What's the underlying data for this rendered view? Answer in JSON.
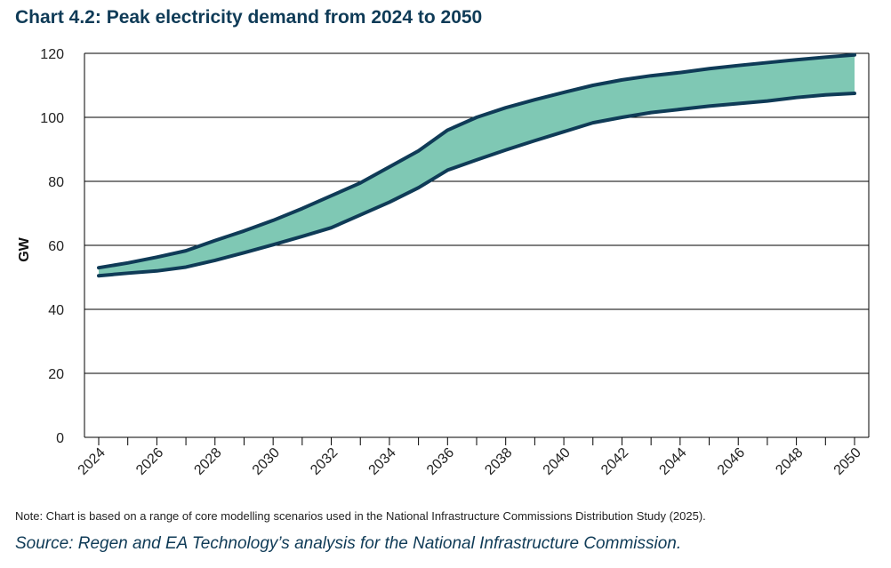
{
  "title": "Chart 4.2: Peak electricity demand from 2024 to 2050",
  "note": "Note: Chart is based on a range of core modelling scenarios used in the National Infrastructure Commissions Distribution Study (2025).",
  "source": "Source: Regen and EA Technology’s analysis for the National Infrastructure Commission.",
  "colors": {
    "band_fill": "#7fc8b4",
    "line": "#0f3b57",
    "grid": "#000000",
    "title": "#0f3b57"
  },
  "chart_data": {
    "type": "area",
    "title": "Chart 4.2: Peak electricity demand from 2024 to 2050",
    "xlabel": "",
    "ylabel": "GW",
    "ylim": [
      0,
      120
    ],
    "yticks": [
      0,
      20,
      40,
      60,
      80,
      100,
      120
    ],
    "x": [
      2024,
      2025,
      2026,
      2027,
      2028,
      2029,
      2030,
      2031,
      2032,
      2033,
      2034,
      2035,
      2036,
      2037,
      2038,
      2039,
      2040,
      2041,
      2042,
      2043,
      2044,
      2045,
      2046,
      2047,
      2048,
      2049,
      2050
    ],
    "xtick_labels": [
      "2024",
      "2026",
      "2028",
      "2030",
      "2032",
      "2034",
      "2036",
      "2038",
      "2040",
      "2042",
      "2044",
      "2046",
      "2048",
      "2050"
    ],
    "grid": true,
    "series": [
      {
        "values": [
          53,
          54.5,
          56.3,
          58.3,
          61.5,
          64.5,
          67.8,
          71.5,
          75.5,
          79.5,
          84.5,
          89.5,
          96,
          100,
          103,
          105.5,
          107.8,
          110,
          111.7,
          113,
          114,
          115.2,
          116.2,
          117.1,
          118,
          118.8,
          119.5
        ]
      },
      {
        "values": [
          50.5,
          51.3,
          52,
          53.2,
          55.3,
          57.7,
          60.2,
          62.8,
          65.5,
          69.5,
          73.5,
          78,
          83.5,
          86.7,
          89.8,
          92.7,
          95.5,
          98.3,
          100,
          101.5,
          102.5,
          103.5,
          104.3,
          105.1,
          106.2,
          107,
          107.5
        ]
      }
    ]
  }
}
